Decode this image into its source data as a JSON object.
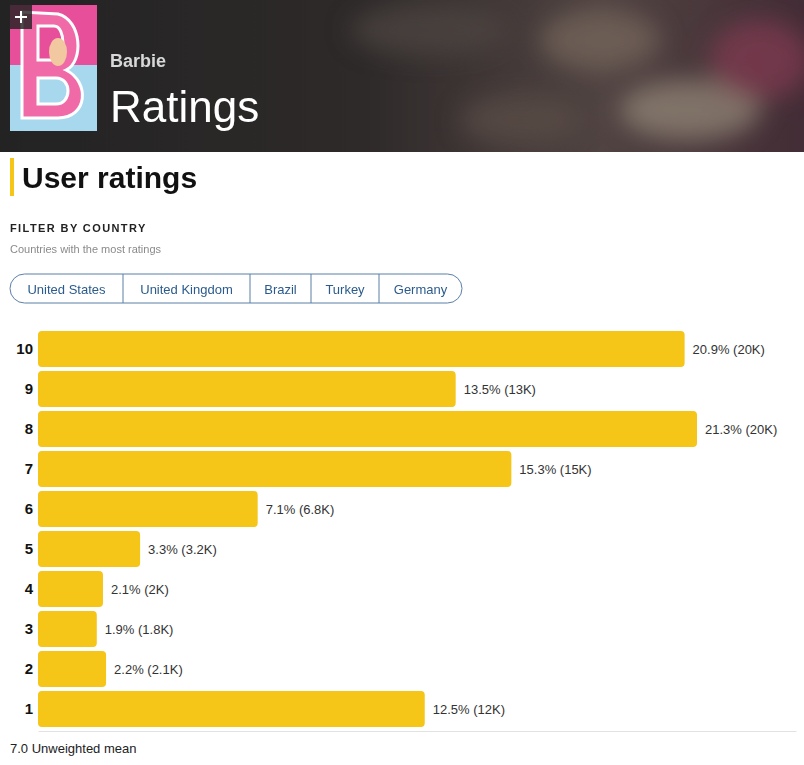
{
  "header": {
    "title": "Barbie",
    "subtitle": "Ratings"
  },
  "filter": {
    "heading": "FILTER BY COUNTRY",
    "note": "Countries with the most ratings",
    "countries": [
      "United States",
      "United Kingdom",
      "Brazil",
      "Turkey",
      "Germany"
    ]
  },
  "chart_data": {
    "type": "bar",
    "title": "User ratings",
    "orientation": "horizontal",
    "categories": [
      "10",
      "9",
      "8",
      "7",
      "6",
      "5",
      "4",
      "3",
      "2",
      "1"
    ],
    "values": [
      20.9,
      13.5,
      21.3,
      15.3,
      7.1,
      3.3,
      2.1,
      1.9,
      2.2,
      12.5
    ],
    "value_labels": [
      "20.9% (20K)",
      "13.5% (13K)",
      "21.3% (20K)",
      "15.3% (15K)",
      "7.1% (6.8K)",
      "3.3% (3.2K)",
      "2.1% (2K)",
      "1.9% (1.8K)",
      "2.2% (2.1K)",
      "12.5% (12K)"
    ],
    "color": "#f5c518",
    "xlim": [
      0,
      24.5
    ],
    "data_labels": true,
    "tick_labels": "y",
    "grid": false
  },
  "footer": "7.0 Unweighted mean"
}
